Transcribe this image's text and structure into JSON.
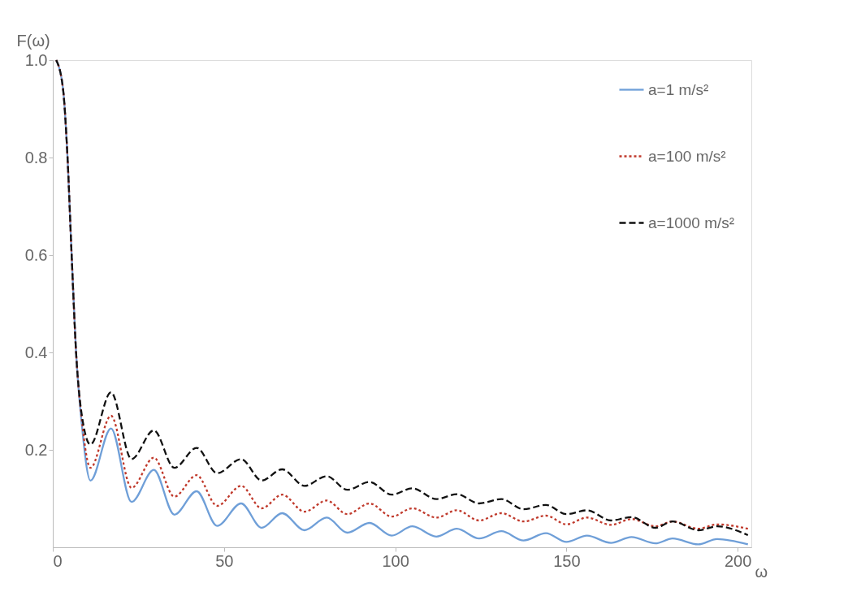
{
  "chart_data": {
    "type": "line",
    "xlabel": "ω",
    "ylabel": "F(ω)",
    "x": [
      1,
      3,
      4.3,
      5.5,
      6.8,
      8.5,
      11,
      17,
      23,
      29.5,
      35.5,
      42,
      48,
      55,
      61,
      67,
      73.5,
      80,
      86,
      92.5,
      99,
      105,
      112,
      118,
      124.5,
      131,
      137.5,
      144,
      150,
      156,
      163,
      169,
      176,
      181,
      188.5,
      194,
      203
    ],
    "series": [
      {
        "name": "a=1 m/s²",
        "color": "#6f9fd8",
        "line_style": "solid",
        "values": [
          1.0,
          0.94,
          0.8,
          0.6,
          0.4,
          0.25,
          0.137,
          0.244,
          0.093,
          0.159,
          0.067,
          0.115,
          0.044,
          0.09,
          0.04,
          0.07,
          0.035,
          0.061,
          0.03,
          0.05,
          0.024,
          0.043,
          0.022,
          0.038,
          0.018,
          0.033,
          0.014,
          0.029,
          0.011,
          0.024,
          0.009,
          0.021,
          0.008,
          0.018,
          0.006,
          0.017,
          0.006
        ]
      },
      {
        "name": "a=100 m/s²",
        "color": "#c0392b",
        "line_style": "dotted",
        "values": [
          1.0,
          0.94,
          0.8,
          0.6,
          0.4,
          0.26,
          0.163,
          0.27,
          0.122,
          0.184,
          0.104,
          0.148,
          0.085,
          0.126,
          0.08,
          0.108,
          0.073,
          0.096,
          0.068,
          0.09,
          0.063,
          0.08,
          0.061,
          0.076,
          0.055,
          0.07,
          0.053,
          0.065,
          0.047,
          0.061,
          0.046,
          0.058,
          0.043,
          0.053,
          0.038,
          0.047,
          0.038
        ]
      },
      {
        "name": "a=1000 m/s²",
        "color": "#111111",
        "line_style": "dashed",
        "values": [
          1.0,
          0.94,
          0.8,
          0.6,
          0.4,
          0.27,
          0.211,
          0.318,
          0.181,
          0.24,
          0.163,
          0.204,
          0.152,
          0.181,
          0.137,
          0.16,
          0.126,
          0.146,
          0.118,
          0.134,
          0.108,
          0.121,
          0.099,
          0.109,
          0.09,
          0.099,
          0.078,
          0.087,
          0.068,
          0.076,
          0.055,
          0.062,
          0.04,
          0.053,
          0.035,
          0.043,
          0.025
        ]
      }
    ],
    "xlim": [
      0,
      204
    ],
    "xticks": [
      0,
      50,
      100,
      150,
      200
    ],
    "ylim": [
      0,
      1.0
    ],
    "yticks": [
      0.2,
      0.4,
      0.6,
      0.8,
      {
        "value": 1.0,
        "label": "1.0"
      }
    ],
    "grid": false,
    "legend": "top right",
    "marker": "none"
  }
}
